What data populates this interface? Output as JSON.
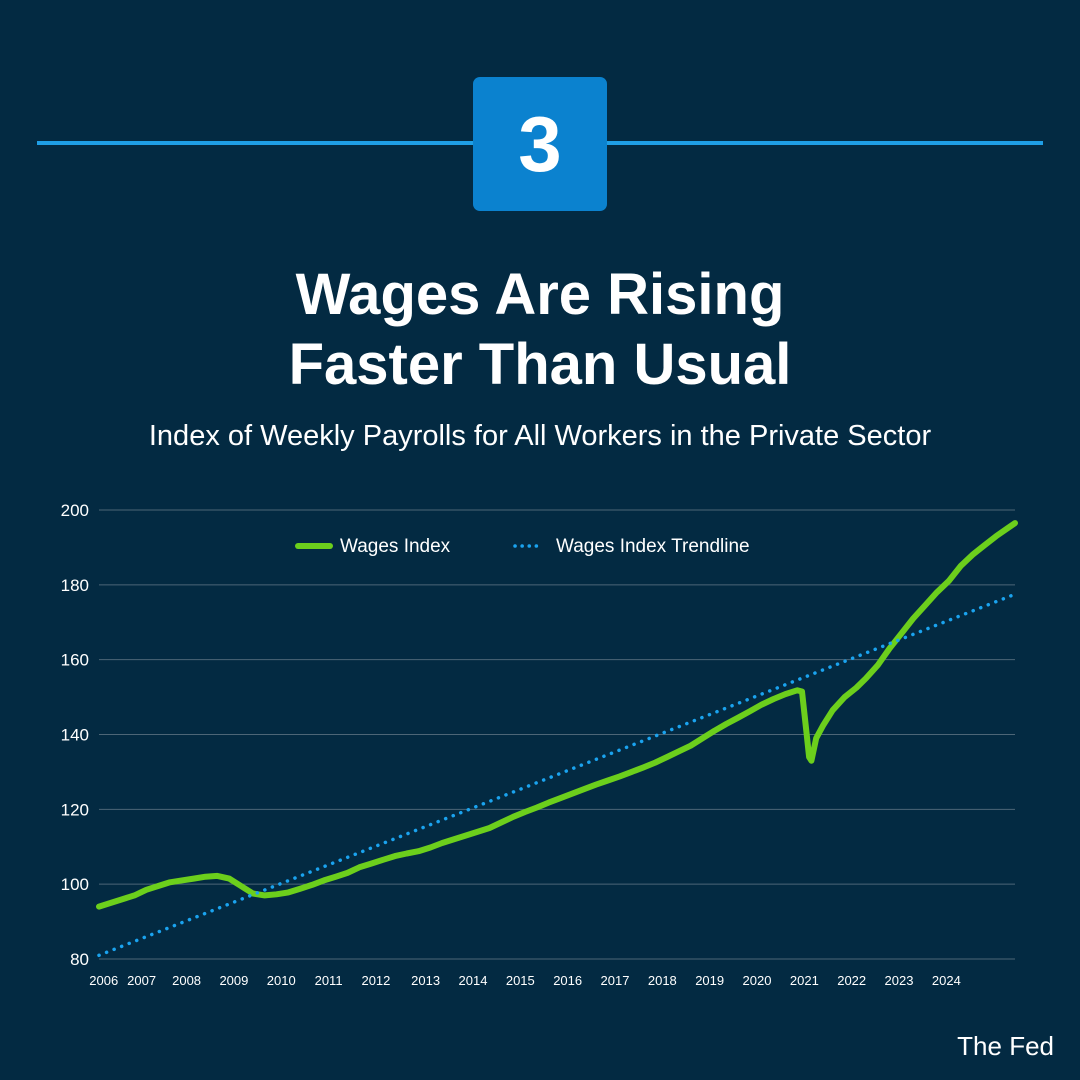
{
  "badge": {
    "number": "3"
  },
  "title": {
    "line1": "Wages Are Rising",
    "line2": "Faster Than Usual"
  },
  "subtitle": "Index of Weekly Payrolls for All Workers in the Private Sector",
  "source": "The Fed",
  "colors": {
    "background": "#032a42",
    "accent_line": "#1f9fe6",
    "badge": "#0b82cf",
    "wages_line": "#6ccf1c",
    "trendline": "#1aa3ef",
    "gridline": "#4d6677"
  },
  "chart_data": {
    "type": "line",
    "title": "Index of Weekly Payrolls for All Workers in the Private Sector",
    "xlabel": "",
    "ylabel": "",
    "ylim": [
      80,
      200
    ],
    "xlim": [
      2006.0,
      2024.6
    ],
    "y_ticks": [
      80,
      100,
      120,
      140,
      160,
      180,
      200
    ],
    "x_ticks": [
      {
        "label": "2006",
        "x": 2006.1
      },
      {
        "label": "2007",
        "x": 2006.9
      },
      {
        "label": "2008",
        "x": 2007.85
      },
      {
        "label": "2009",
        "x": 2008.85
      },
      {
        "label": "2010",
        "x": 2009.85
      },
      {
        "label": "2011",
        "x": 2010.85
      },
      {
        "label": "2012",
        "x": 2011.85
      },
      {
        "label": "2013",
        "x": 2012.9
      },
      {
        "label": "2014",
        "x": 2013.9
      },
      {
        "label": "2015",
        "x": 2014.9
      },
      {
        "label": "2016",
        "x": 2015.9
      },
      {
        "label": "2017",
        "x": 2016.9
      },
      {
        "label": "2018",
        "x": 2017.9
      },
      {
        "label": "2019",
        "x": 2018.9
      },
      {
        "label": "2020",
        "x": 2019.9
      },
      {
        "label": "2021",
        "x": 2020.9
      },
      {
        "label": "2022",
        "x": 2021.9
      },
      {
        "label": "2023",
        "x": 2022.9
      },
      {
        "label": "2024",
        "x": 2023.9
      }
    ],
    "grid": true,
    "legend_position": "top-center",
    "series": [
      {
        "name": "Wages Index",
        "style": "solid",
        "color": "#6ccf1c",
        "points": [
          [
            2006.0,
            94
          ],
          [
            2006.25,
            95
          ],
          [
            2006.5,
            96
          ],
          [
            2006.75,
            97
          ],
          [
            2007.0,
            98.5
          ],
          [
            2007.25,
            99.5
          ],
          [
            2007.5,
            100.5
          ],
          [
            2007.75,
            101
          ],
          [
            2008.0,
            101.5
          ],
          [
            2008.25,
            102
          ],
          [
            2008.5,
            102.2
          ],
          [
            2008.75,
            101.5
          ],
          [
            2009.0,
            99.5
          ],
          [
            2009.25,
            97.5
          ],
          [
            2009.5,
            97
          ],
          [
            2009.75,
            97.3
          ],
          [
            2010.0,
            97.8
          ],
          [
            2010.25,
            98.8
          ],
          [
            2010.5,
            99.8
          ],
          [
            2010.75,
            101
          ],
          [
            2011.0,
            102
          ],
          [
            2011.25,
            103
          ],
          [
            2011.5,
            104.5
          ],
          [
            2011.75,
            105.5
          ],
          [
            2012.0,
            106.5
          ],
          [
            2012.25,
            107.5
          ],
          [
            2012.5,
            108.2
          ],
          [
            2012.75,
            108.8
          ],
          [
            2013.0,
            109.8
          ],
          [
            2013.25,
            111
          ],
          [
            2013.5,
            112
          ],
          [
            2013.75,
            113
          ],
          [
            2014.0,
            114
          ],
          [
            2014.25,
            115
          ],
          [
            2014.5,
            116.5
          ],
          [
            2014.75,
            118
          ],
          [
            2015.0,
            119.3
          ],
          [
            2015.25,
            120.5
          ],
          [
            2015.5,
            121.8
          ],
          [
            2015.75,
            123
          ],
          [
            2016.0,
            124.2
          ],
          [
            2016.25,
            125.4
          ],
          [
            2016.5,
            126.6
          ],
          [
            2016.75,
            127.7
          ],
          [
            2017.0,
            128.8
          ],
          [
            2017.25,
            130
          ],
          [
            2017.5,
            131.2
          ],
          [
            2017.75,
            132.5
          ],
          [
            2018.0,
            134
          ],
          [
            2018.25,
            135.5
          ],
          [
            2018.5,
            137
          ],
          [
            2018.75,
            139
          ],
          [
            2019.0,
            141
          ],
          [
            2019.25,
            142.8
          ],
          [
            2019.5,
            144.5
          ],
          [
            2019.75,
            146.2
          ],
          [
            2020.0,
            148
          ],
          [
            2020.25,
            149.5
          ],
          [
            2020.5,
            150.8
          ],
          [
            2020.75,
            151.8
          ],
          [
            2020.85,
            151.5
          ],
          [
            2020.95,
            140
          ],
          [
            2021.0,
            134
          ],
          [
            2021.05,
            133
          ],
          [
            2021.15,
            139
          ],
          [
            2021.3,
            142.5
          ],
          [
            2021.5,
            146.5
          ],
          [
            2021.75,
            150
          ],
          [
            2022.0,
            152.5
          ],
          [
            2022.2,
            155
          ],
          [
            2022.45,
            158.5
          ],
          [
            2022.7,
            163
          ],
          [
            2022.95,
            167
          ],
          [
            2023.2,
            171
          ],
          [
            2023.45,
            174.5
          ],
          [
            2023.7,
            178
          ],
          [
            2023.95,
            181
          ],
          [
            2024.2,
            185
          ],
          [
            2024.45,
            188
          ],
          [
            2024.7,
            190.5
          ],
          [
            2024.95,
            193
          ],
          [
            2025.2,
            195.2
          ],
          [
            2025.35,
            196.5
          ]
        ]
      },
      {
        "name": "Wages Index Trendline",
        "style": "dotted",
        "color": "#1aa3ef",
        "points": [
          [
            2006.0,
            81
          ],
          [
            2025.35,
            177.5
          ]
        ]
      }
    ]
  }
}
